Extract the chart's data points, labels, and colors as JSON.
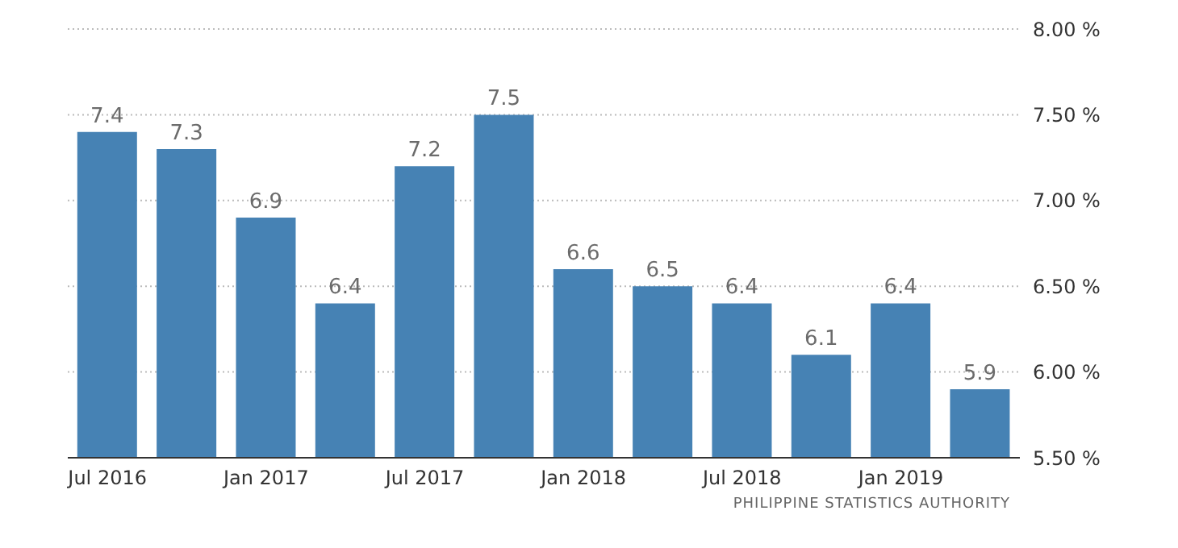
{
  "chart_data": {
    "type": "bar",
    "categories": [
      "Jul 2016",
      null,
      "Jan 2017",
      null,
      "Jul 2017",
      null,
      "Jan 2018",
      null,
      "Jul 2018",
      null,
      "Jan 2019",
      null
    ],
    "values": [
      7.4,
      7.3,
      6.9,
      6.4,
      7.2,
      7.5,
      6.6,
      6.5,
      6.4,
      6.1,
      6.4,
      5.9
    ],
    "color": "#4682b4",
    "ylim": [
      5.5,
      8
    ],
    "yticks": [
      {
        "value": 5.5,
        "label": "5.50 %"
      },
      {
        "value": 6,
        "label": "6.00 %"
      },
      {
        "value": 6.5,
        "label": "6.50 %"
      },
      {
        "value": 7,
        "label": "7.00 %"
      },
      {
        "value": 7.5,
        "label": "7.50 %"
      },
      {
        "value": 8,
        "label": "8.00 %"
      }
    ],
    "grid": "y",
    "data_labels": true,
    "annotations": [
      "PHILIPPINE STATISTICS AUTHORITY"
    ]
  }
}
